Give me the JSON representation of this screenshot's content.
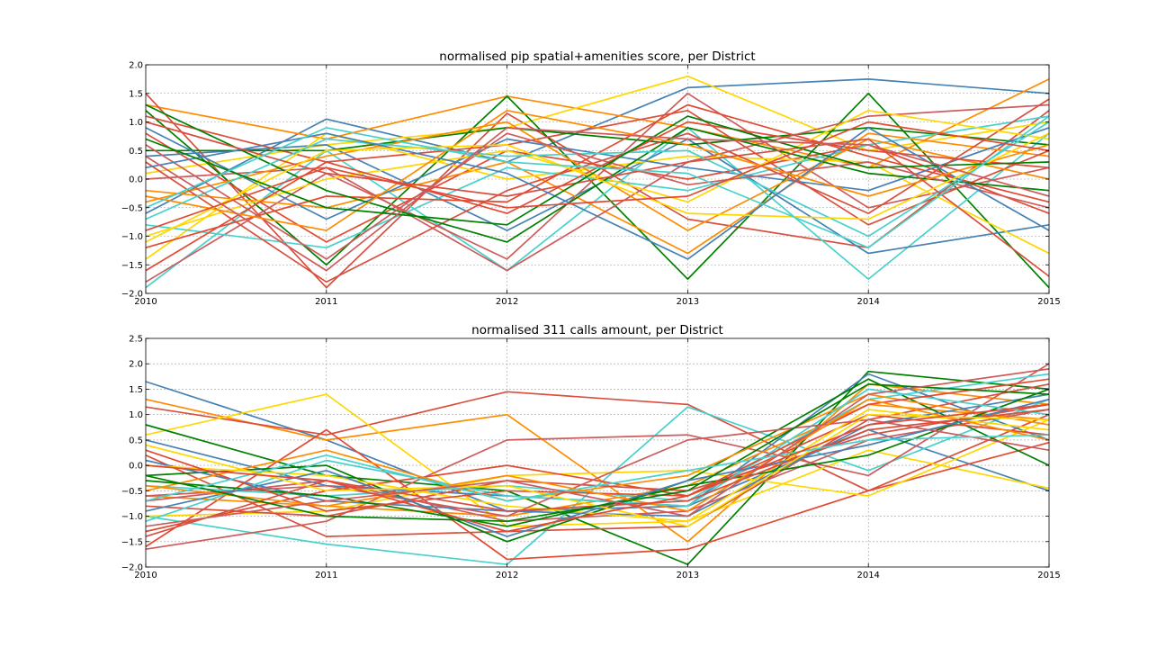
{
  "palette": [
    "#4682b4",
    "#ff8c00",
    "#d94f3d",
    "#ffd700",
    "#008000",
    "#48d1cc",
    "#cd5c5c",
    "#e34a33"
  ],
  "chart_data": [
    {
      "type": "line",
      "title": "normalised pip spatial+amenities score, per District",
      "xlabel": "",
      "ylabel": "",
      "x": [
        "2010",
        "2011",
        "2012",
        "2013",
        "2014",
        "2015"
      ],
      "xlim": [
        2010,
        2015
      ],
      "ylim": [
        -2.0,
        2.0
      ],
      "yticks": [
        "−2.0",
        "−1.5",
        "−1.0",
        "−0.5",
        "0.0",
        "0.5",
        "1.0",
        "1.5",
        "2.0"
      ],
      "grid": true,
      "series": [
        {
          "values": [
            -0.6,
            1.05,
            0.3,
            1.6,
            1.75,
            1.5
          ]
        },
        {
          "values": [
            1.3,
            0.7,
            1.45,
            0.9,
            0.2,
            1.75
          ]
        },
        {
          "values": [
            1.5,
            -1.9,
            1.15,
            -0.7,
            -1.2,
            1.2
          ]
        },
        {
          "values": [
            0.1,
            0.6,
            0.9,
            1.8,
            0.5,
            1.0
          ]
        },
        {
          "values": [
            1.2,
            -1.5,
            1.45,
            -1.75,
            1.5,
            -1.9
          ]
        },
        {
          "values": [
            -1.9,
            0.5,
            -1.6,
            0.9,
            -1.75,
            0.8
          ]
        },
        {
          "values": [
            -1.8,
            0.1,
            -1.4,
            1.5,
            -0.5,
            0.2
          ]
        },
        {
          "values": [
            0.8,
            -1.1,
            0.5,
            0.0,
            0.6,
            -0.6
          ]
        },
        {
          "values": [
            0.4,
            0.6,
            -0.9,
            0.7,
            -1.3,
            -0.8
          ]
        },
        {
          "values": [
            -0.2,
            -0.5,
            0.3,
            -1.3,
            0.8,
            0.4
          ]
        },
        {
          "values": [
            1.1,
            0.3,
            0.6,
            1.2,
            -0.8,
            0.5
          ]
        },
        {
          "values": [
            -1.4,
            0.8,
            0.0,
            0.4,
            0.3,
            -1.3
          ]
        },
        {
          "values": [
            0.5,
            0.5,
            0.9,
            0.6,
            0.9,
            0.6
          ]
        },
        {
          "values": [
            -0.8,
            -1.2,
            0.2,
            -0.2,
            0.6,
            1.1
          ]
        },
        {
          "values": [
            0.0,
            0.2,
            -1.6,
            0.3,
            1.1,
            1.3
          ]
        },
        {
          "values": [
            -1.2,
            -0.3,
            -0.4,
            1.3,
            0.4,
            -0.4
          ]
        },
        {
          "values": [
            0.9,
            -0.7,
            0.7,
            0.2,
            -0.2,
            0.9
          ]
        },
        {
          "values": [
            -0.4,
            0.4,
            1.0,
            -0.9,
            0.7,
            0.0
          ]
        },
        {
          "values": [
            0.3,
            -1.8,
            -0.2,
            0.8,
            -0.6,
            1.4
          ]
        },
        {
          "values": [
            -1.0,
            0.0,
            0.5,
            -0.4,
            1.2,
            0.7
          ]
        },
        {
          "values": [
            1.3,
            -0.2,
            -1.1,
            0.9,
            0.1,
            -0.2
          ]
        },
        {
          "values": [
            -0.7,
            0.7,
            0.4,
            0.5,
            -1.0,
            1.0
          ]
        },
        {
          "values": [
            0.6,
            -1.4,
            0.8,
            -0.1,
            0.3,
            -0.5
          ]
        },
        {
          "values": [
            -1.6,
            0.3,
            -0.6,
            1.0,
            0.5,
            0.2
          ]
        },
        {
          "values": [
            0.2,
            0.8,
            0.1,
            -1.4,
            0.9,
            -0.9
          ]
        },
        {
          "values": [
            -0.3,
            -0.9,
            1.2,
            0.6,
            -0.3,
            0.6
          ]
        },
        {
          "values": [
            1.0,
            0.1,
            -0.3,
            0.3,
            0.7,
            -1.7
          ]
        },
        {
          "values": [
            -1.1,
            0.5,
            0.6,
            -0.6,
            -0.7,
            0.8
          ]
        },
        {
          "values": [
            0.7,
            -0.5,
            -0.8,
            1.1,
            0.2,
            0.3
          ]
        },
        {
          "values": [
            -0.5,
            0.9,
            0.3,
            0.1,
            -1.2,
            1.1
          ]
        },
        {
          "values": [
            0.4,
            -1.6,
            0.9,
            0.7,
            0.6,
            -0.3
          ]
        },
        {
          "values": [
            -0.9,
            0.2,
            -0.5,
            -0.3,
            1.0,
            0.5
          ]
        }
      ]
    },
    {
      "type": "line",
      "title": "normalised 311 calls amount, per District",
      "xlabel": "",
      "ylabel": "",
      "x": [
        "2010",
        "2011",
        "2012",
        "2013",
        "2014",
        "2015"
      ],
      "xlim": [
        2010,
        2015
      ],
      "ylim": [
        -2.0,
        2.5
      ],
      "yticks": [
        "−2.0",
        "−1.5",
        "−1.0",
        "−0.5",
        "0.0",
        "0.5",
        "1.0",
        "1.5",
        "2.0",
        "2.5"
      ],
      "grid": true,
      "series": [
        {
          "values": [
            1.65,
            0.5,
            -0.9,
            -0.8,
            0.7,
            -0.5
          ]
        },
        {
          "values": [
            1.3,
            0.5,
            1.0,
            -1.5,
            1.6,
            1.2
          ]
        },
        {
          "values": [
            1.15,
            0.6,
            1.45,
            1.2,
            -0.5,
            1.0
          ]
        },
        {
          "values": [
            0.6,
            1.4,
            -1.2,
            -1.1,
            0.3,
            -0.45
          ]
        },
        {
          "values": [
            0.8,
            -0.2,
            -0.5,
            -1.95,
            1.85,
            1.5
          ]
        },
        {
          "values": [
            -1.0,
            -1.55,
            -1.95,
            1.15,
            -0.1,
            1.3
          ]
        },
        {
          "values": [
            -1.65,
            -1.1,
            0.5,
            0.6,
            -0.2,
            2.0
          ]
        },
        {
          "values": [
            -1.6,
            0.7,
            -1.85,
            -1.65,
            -0.5,
            0.45
          ]
        },
        {
          "values": [
            0.5,
            -0.4,
            -0.6,
            -0.8,
            1.8,
            0.5
          ]
        },
        {
          "values": [
            -0.6,
            -0.8,
            -1.0,
            -0.4,
            1.2,
            0.9
          ]
        },
        {
          "values": [
            0.2,
            -1.4,
            -1.3,
            -1.2,
            0.9,
            1.6
          ]
        },
        {
          "values": [
            -1.0,
            -0.9,
            -0.2,
            -0.1,
            -0.6,
            0.9
          ]
        },
        {
          "values": [
            -0.2,
            0.0,
            -1.5,
            -0.3,
            1.7,
            0.0
          ]
        },
        {
          "values": [
            -0.4,
            -0.6,
            -0.4,
            -0.7,
            1.3,
            1.8
          ]
        },
        {
          "values": [
            -0.7,
            -0.3,
            -1.1,
            -0.9,
            0.5,
            1.1
          ]
        },
        {
          "values": [
            -1.3,
            -0.5,
            0.0,
            -0.6,
            1.0,
            0.6
          ]
        },
        {
          "values": [
            0.1,
            -0.7,
            -0.9,
            -1.0,
            0.8,
            1.4
          ]
        },
        {
          "values": [
            -0.5,
            0.3,
            -0.7,
            -0.2,
            1.4,
            0.8
          ]
        },
        {
          "values": [
            -0.8,
            -1.0,
            -0.3,
            -0.5,
            0.6,
            1.2
          ]
        },
        {
          "values": [
            0.0,
            -0.2,
            -0.8,
            -1.1,
            1.1,
            0.7
          ]
        },
        {
          "values": [
            -0.3,
            -0.6,
            -1.2,
            -0.4,
            0.2,
            1.5
          ]
        },
        {
          "values": [
            -1.1,
            0.1,
            -0.6,
            -0.8,
            1.5,
            1.0
          ]
        },
        {
          "values": [
            -0.6,
            -0.4,
            -1.0,
            0.5,
            0.9,
            0.3
          ]
        },
        {
          "values": [
            0.3,
            -0.9,
            -0.5,
            -0.6,
            1.2,
            1.7
          ]
        },
        {
          "values": [
            -0.9,
            -0.1,
            -1.4,
            -0.3,
            0.4,
            1.3
          ]
        },
        {
          "values": [
            -0.4,
            -0.8,
            -0.2,
            -0.9,
            1.3,
            0.5
          ]
        },
        {
          "values": [
            -1.4,
            -0.3,
            -0.9,
            -0.7,
            0.7,
            1.1
          ]
        },
        {
          "values": [
            0.4,
            -0.5,
            -0.4,
            -1.2,
            1.0,
            0.9
          ]
        },
        {
          "values": [
            -0.2,
            -1.0,
            -1.1,
            -0.5,
            1.6,
            1.4
          ]
        },
        {
          "values": [
            -0.7,
            0.2,
            -0.7,
            -0.1,
            0.5,
            0.6
          ]
        },
        {
          "values": [
            -1.2,
            -0.7,
            -0.3,
            -1.0,
            1.4,
            1.9
          ]
        },
        {
          "values": [
            0.0,
            -0.3,
            -1.3,
            -0.6,
            0.8,
            1.2
          ]
        }
      ]
    }
  ]
}
